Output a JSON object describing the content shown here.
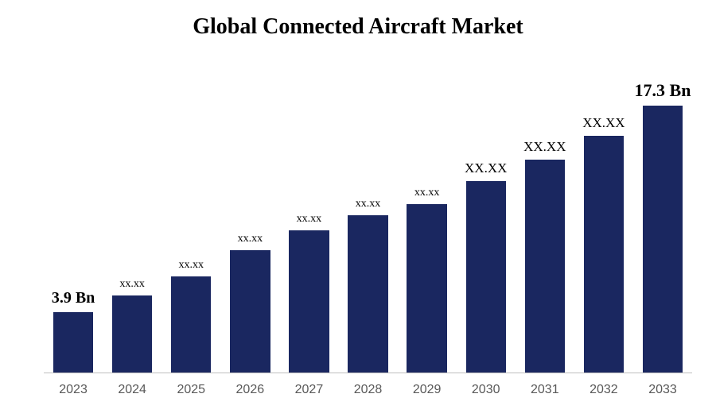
{
  "chart": {
    "type": "bar",
    "title": "Global Connected Aircraft Market",
    "title_fontsize": 28,
    "title_fontweight": "bold",
    "title_color": "#000000",
    "background_color": "#ffffff",
    "axis_line_color": "#bfbfbf",
    "categories": [
      "2023",
      "2024",
      "2025",
      "2026",
      "2027",
      "2028",
      "2029",
      "2030",
      "2031",
      "2032",
      "2033"
    ],
    "values": [
      3.9,
      5.0,
      6.2,
      7.9,
      9.2,
      10.2,
      10.9,
      12.4,
      13.8,
      15.3,
      17.3
    ],
    "data_labels": [
      "3.9 Bn",
      "xx.xx",
      "xx.xx",
      "xx.xx",
      "xx.xx",
      "xx.xx",
      "xx.xx",
      "XX.XX",
      "XX.XX",
      "XX.XX",
      "17.3 Bn"
    ],
    "data_label_sizes": [
      20,
      14,
      14,
      14,
      14,
      14,
      14,
      17,
      17,
      17,
      22
    ],
    "data_label_weights": [
      "bold",
      "normal",
      "normal",
      "normal",
      "normal",
      "normal",
      "normal",
      "normal",
      "normal",
      "normal",
      "bold"
    ],
    "bar_color": "#1a2760",
    "x_label_color": "#595959",
    "x_label_fontsize": 16,
    "ylim": [
      0,
      20
    ],
    "bar_width_ratio": 0.68
  }
}
